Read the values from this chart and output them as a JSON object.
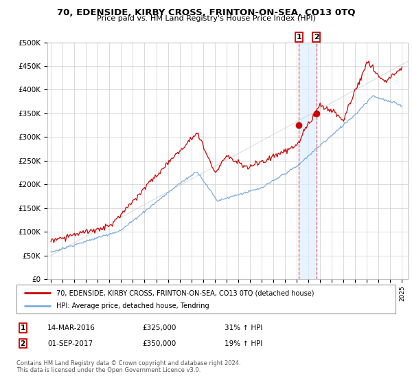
{
  "title": "70, EDENSIDE, KIRBY CROSS, FRINTON-ON-SEA, CO13 0TQ",
  "subtitle": "Price paid vs. HM Land Registry's House Price Index (HPI)",
  "ylim": [
    0,
    500000
  ],
  "xlim_start": 1994.7,
  "xlim_end": 2025.5,
  "red_line_color": "#cc0000",
  "blue_line_color": "#7aaadd",
  "vline_color": "#dd4444",
  "shade_color": "#ddeeff",
  "transaction1_date": 2016.2,
  "transaction2_date": 2017.67,
  "transaction1_price": 325000,
  "transaction2_price": 350000,
  "legend_label1": "70, EDENSIDE, KIRBY CROSS, FRINTON-ON-SEA, CO13 0TQ (detached house)",
  "legend_label2": "HPI: Average price, detached house, Tendring",
  "footer": "Contains HM Land Registry data © Crown copyright and database right 2024.\nThis data is licensed under the Open Government Licence v3.0.",
  "background_color": "#ffffff",
  "grid_color": "#cccccc"
}
